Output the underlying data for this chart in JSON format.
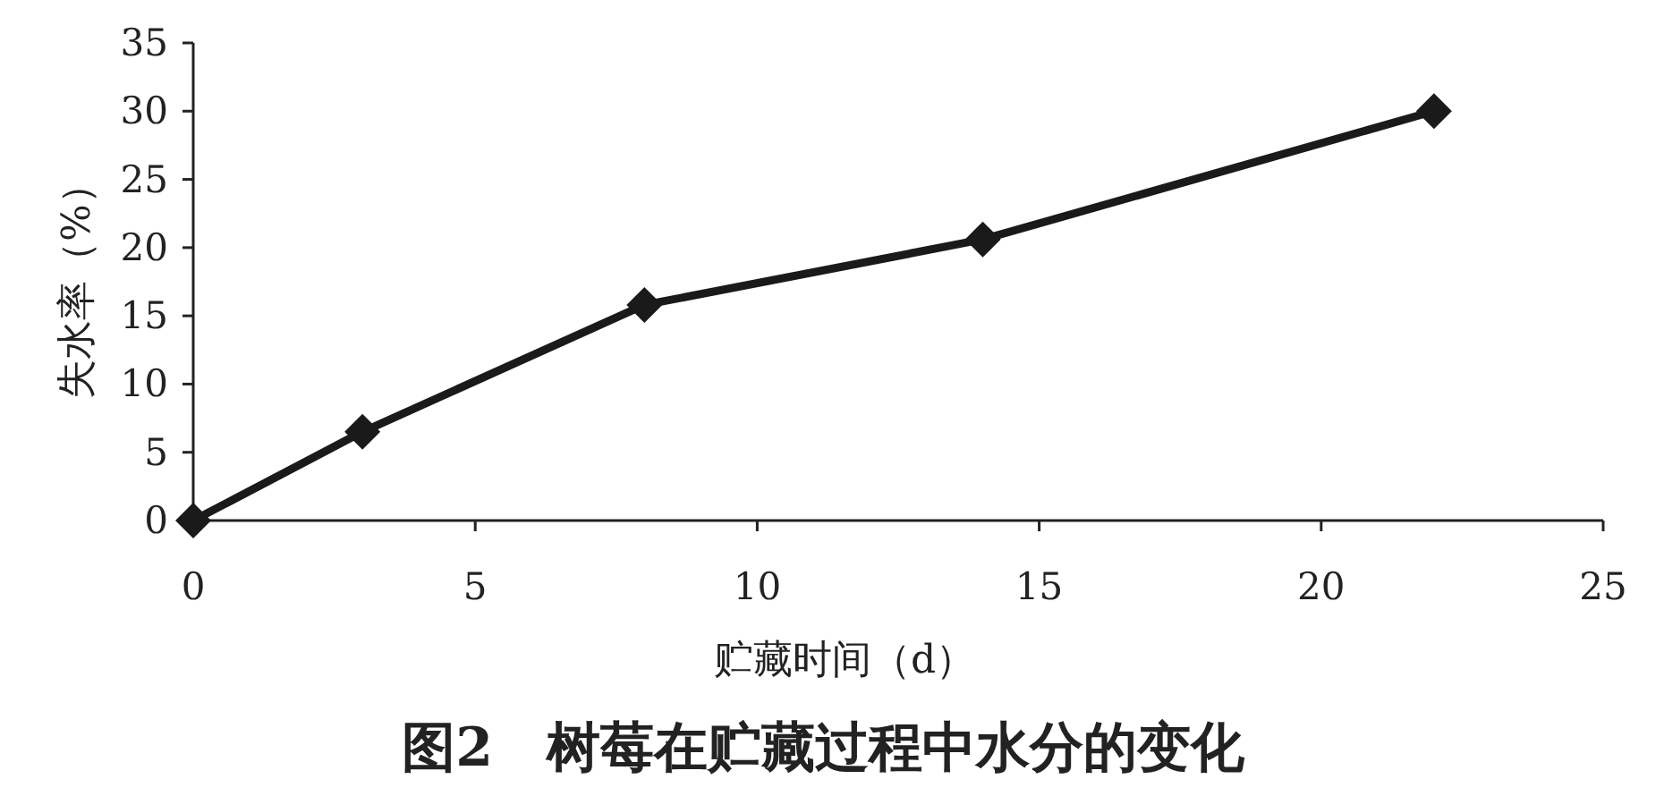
{
  "chart_data": {
    "type": "line",
    "title": "图2　树莓在贮藏过程中水分的变化",
    "xlabel": "贮藏时间（d）",
    "ylabel": "失水率（%）",
    "x": [
      0,
      3,
      8,
      14,
      22
    ],
    "series": [
      {
        "color": "#1a1a1a",
        "values": [
          0,
          6.5,
          15.8,
          20.6,
          30
        ]
      }
    ],
    "xlim": [
      0,
      25
    ],
    "ylim": [
      0,
      35
    ],
    "xticks": [
      0,
      5,
      10,
      15,
      20,
      25
    ],
    "yticks": [
      0,
      5,
      10,
      15,
      20,
      25,
      30,
      35
    ],
    "marker": "diamond",
    "line_style": "solid",
    "grid": false
  }
}
